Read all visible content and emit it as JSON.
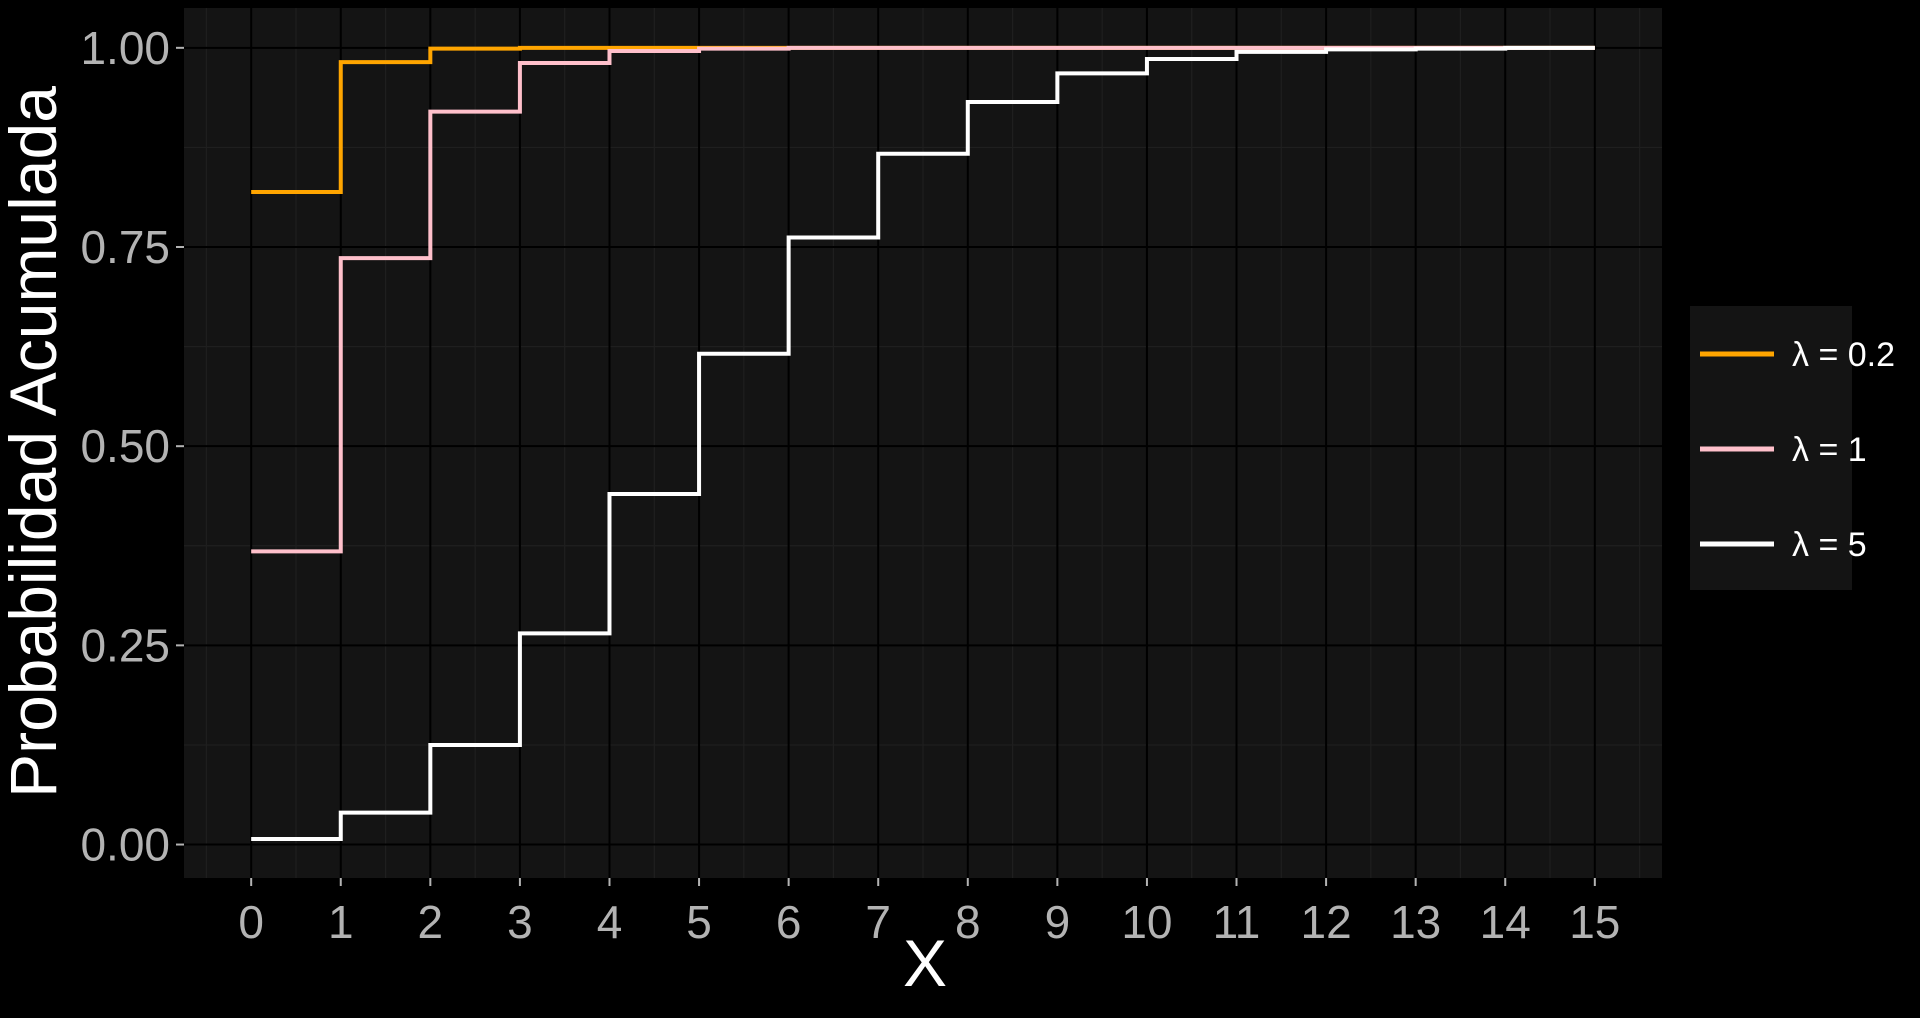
{
  "chart_data": {
    "type": "line",
    "step": true,
    "title": "",
    "xlabel": "X",
    "ylabel": "Probabilidad Acumulada",
    "xlim": [
      -0.75,
      15.75
    ],
    "ylim": [
      -0.042,
      1.05
    ],
    "x_ticks": [
      "0",
      "1",
      "2",
      "3",
      "4",
      "5",
      "6",
      "7",
      "8",
      "9",
      "10",
      "11",
      "12",
      "13",
      "14",
      "15"
    ],
    "y_ticks": [
      "0.00",
      "0.25",
      "0.50",
      "0.75",
      "1.00"
    ],
    "grid": true,
    "legend_position": "right",
    "x": [
      0,
      1,
      2,
      3,
      4,
      5,
      6,
      7,
      8,
      9,
      10,
      11,
      12,
      13,
      14,
      15
    ],
    "series": [
      {
        "name": "λ = 0.2",
        "color": "#FFA500",
        "values": [
          0.819,
          0.982,
          0.999,
          1.0,
          1.0,
          1.0,
          1.0,
          1.0,
          1.0,
          1.0,
          1.0,
          1.0,
          1.0,
          1.0,
          1.0,
          1.0
        ]
      },
      {
        "name": "λ = 1",
        "color": "#FFC0CB",
        "values": [
          0.368,
          0.736,
          0.92,
          0.981,
          0.996,
          0.999,
          1.0,
          1.0,
          1.0,
          1.0,
          1.0,
          1.0,
          1.0,
          1.0,
          1.0,
          1.0
        ]
      },
      {
        "name": "λ = 5",
        "color": "#FFFFFF",
        "values": [
          0.007,
          0.04,
          0.125,
          0.265,
          0.44,
          0.616,
          0.762,
          0.867,
          0.932,
          0.968,
          0.986,
          0.995,
          0.998,
          0.999,
          1.0,
          1.0
        ]
      }
    ]
  },
  "colors": {
    "background": "#000000",
    "panel": "#141414",
    "grid_major": "#000000",
    "grid_minor": "#1f1f1f",
    "tick_text": "#B3B3B3",
    "axis_title": "#FFFFFF",
    "legend_bg": "#141414"
  }
}
